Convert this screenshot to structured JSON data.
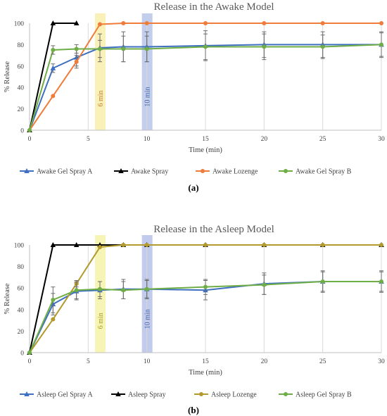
{
  "figure": {
    "panels": [
      {
        "label": "(a)"
      },
      {
        "label": "(b)"
      }
    ]
  },
  "chart_data": [
    {
      "type": "line",
      "title": "Release in the Awake Model",
      "xlabel": "Time (min)",
      "ylabel": "% Release",
      "xlim": [
        0,
        30
      ],
      "ylim": [
        0,
        100
      ],
      "xticks": [
        0,
        5,
        10,
        15,
        20,
        25,
        30
      ],
      "yticks": [
        0,
        20,
        40,
        60,
        80,
        100
      ],
      "grid": "vertical",
      "legend": "bottom",
      "highlights": [
        {
          "x": 6,
          "label": "6 min",
          "color": "#f5e680",
          "text_color": "#c8792a"
        },
        {
          "x": 10,
          "label": "10 min",
          "color": "#8fa6dc",
          "text_color": "#3c5fa8"
        }
      ],
      "series": [
        {
          "name": "Awake Gel Spray A",
          "color": "#3e6fc0",
          "marker": "triangle",
          "x": [
            0,
            2,
            4,
            6,
            8,
            10,
            15,
            20,
            25,
            30
          ],
          "y": [
            0,
            58,
            68,
            77,
            78,
            78,
            79,
            80,
            80,
            80
          ],
          "err": [
            0,
            4,
            8,
            13,
            14,
            14,
            14,
            12,
            12,
            12
          ]
        },
        {
          "name": "Awake Spray",
          "color": "#000000",
          "marker": "triangle",
          "x": [
            0,
            2,
            4
          ],
          "y": [
            0,
            100,
            100
          ],
          "err": [
            0,
            0,
            0
          ]
        },
        {
          "name": "Awake Lozenge",
          "color": "#ef7c3a",
          "marker": "circle",
          "x": [
            0,
            2,
            4,
            6,
            8,
            10,
            15,
            20,
            25,
            30
          ],
          "y": [
            0,
            32,
            64,
            99,
            100,
            100,
            100,
            100,
            100,
            100
          ],
          "err": [
            0,
            0,
            6,
            0,
            0,
            0,
            0,
            0,
            0,
            0
          ]
        },
        {
          "name": "Awake Gel Spray B",
          "color": "#6fae46",
          "marker": "circle",
          "x": [
            0,
            2,
            4,
            6,
            8,
            10,
            15,
            20,
            25,
            30
          ],
          "y": [
            0,
            75,
            76,
            76,
            76,
            76,
            78,
            78,
            78,
            80
          ],
          "err": [
            0,
            4,
            4,
            8,
            12,
            12,
            12,
            12,
            11,
            11
          ]
        }
      ]
    },
    {
      "type": "line",
      "title": "Release in the Asleep Model",
      "xlabel": "Time (min)",
      "ylabel": "% Release",
      "xlim": [
        0,
        30
      ],
      "ylim": [
        0,
        100
      ],
      "xticks": [
        0,
        5,
        10,
        15,
        20,
        25,
        30
      ],
      "yticks": [
        0,
        20,
        40,
        60,
        80,
        100
      ],
      "grid": "vertical",
      "legend": "bottom",
      "highlights": [
        {
          "x": 6,
          "label": "6 min",
          "color": "#f0ec7a",
          "text_color": "#a89a22"
        },
        {
          "x": 10,
          "label": "10 min",
          "color": "#8fa0da",
          "text_color": "#3c5fa8"
        }
      ],
      "series": [
        {
          "name": "Asleep Gel Spray A",
          "color": "#3e6fc0",
          "marker": "triangle",
          "x": [
            0,
            2,
            4,
            6,
            8,
            10,
            15,
            20,
            25,
            30
          ],
          "y": [
            0,
            45,
            57,
            58,
            59,
            59,
            58,
            64,
            66,
            66
          ],
          "err": [
            0,
            10,
            8,
            8,
            9,
            9,
            9,
            10,
            10,
            10
          ]
        },
        {
          "name": "Asleep Spray",
          "color": "#000000",
          "marker": "triangle",
          "x": [
            0,
            2,
            4,
            6,
            8,
            10,
            15,
            20,
            25,
            30
          ],
          "y": [
            0,
            100,
            100,
            100,
            100,
            100,
            100,
            100,
            100,
            100
          ],
          "err": [
            0,
            0,
            0,
            0,
            0,
            0,
            0,
            0,
            0,
            0
          ]
        },
        {
          "name": "Asleep Lozenge",
          "color": "#b29a2e",
          "marker": "circle",
          "x": [
            0,
            2,
            4,
            6,
            8,
            10,
            15,
            20,
            25,
            30
          ],
          "y": [
            0,
            31,
            64,
            98,
            100,
            100,
            100,
            100,
            100,
            100
          ],
          "err": [
            0,
            0,
            3,
            0,
            0,
            0,
            0,
            0,
            0,
            0
          ]
        },
        {
          "name": "Asleep Gel Spray B",
          "color": "#6fae46",
          "marker": "circle",
          "x": [
            0,
            2,
            4,
            6,
            8,
            10,
            15,
            20,
            25,
            30
          ],
          "y": [
            0,
            49,
            58,
            59,
            58,
            59,
            61,
            63,
            66,
            66
          ],
          "err": [
            0,
            12,
            8,
            7,
            8,
            8,
            7,
            9,
            9,
            9
          ]
        }
      ]
    }
  ]
}
